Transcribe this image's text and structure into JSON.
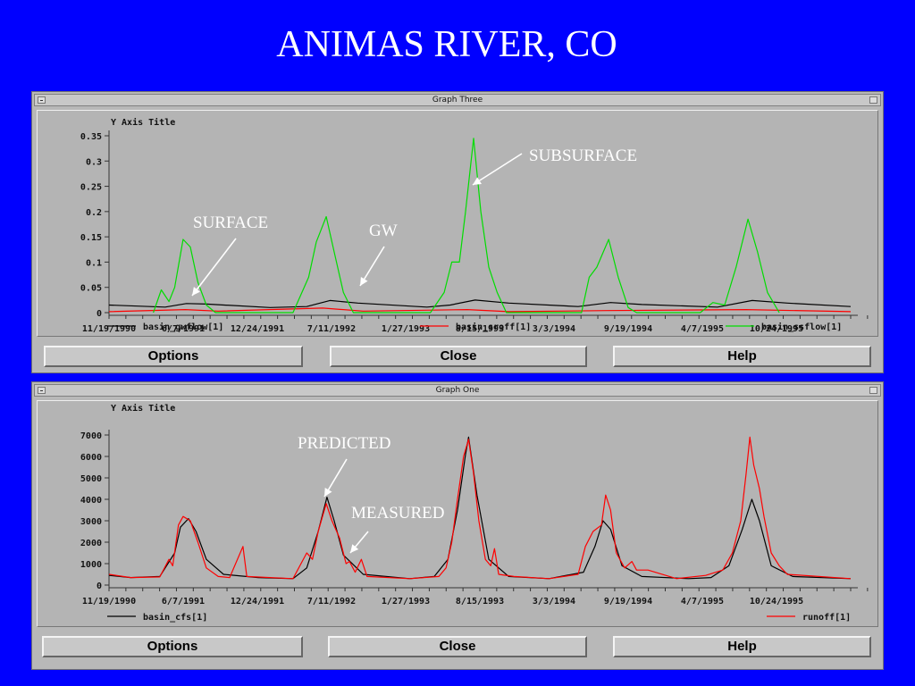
{
  "slide_title": "ANIMAS RIVER, CO",
  "windows": [
    {
      "title": "Graph Three",
      "buttons": {
        "options": "Options",
        "close": "Close",
        "help": "Help"
      }
    },
    {
      "title": "Graph One",
      "buttons": {
        "options": "Options",
        "close": "Close",
        "help": "Help"
      }
    }
  ],
  "chart_data": [
    {
      "type": "line",
      "ylabel": "Y Axis Title",
      "ylim": [
        0,
        0.35
      ],
      "yticks": [
        "0.35",
        "0.3",
        "0.25",
        "0.2",
        "0.15",
        "0.1",
        "0.05",
        "0"
      ],
      "xlim": [
        "1990-11-19",
        "1996-03-15"
      ],
      "xtick_labels": [
        "11/19/1990",
        "6/7/1991",
        "12/24/1991",
        "7/11/1992",
        "1/27/1993",
        "8/15/1993",
        "3/3/1994",
        "9/19/1994",
        "4/7/1995",
        "10/24/1995"
      ],
      "series": [
        {
          "name": "basin_gwflow[1]",
          "color": "#000000",
          "points": [
            [
              "1990-11-19",
              0.015
            ],
            [
              "1991-04-15",
              0.011
            ],
            [
              "1991-06-10",
              0.018
            ],
            [
              "1991-08-01",
              0.017
            ],
            [
              "1992-01-15",
              0.01
            ],
            [
              "1992-04-20",
              0.012
            ],
            [
              "1992-06-20",
              0.024
            ],
            [
              "1992-09-01",
              0.019
            ],
            [
              "1993-03-01",
              0.011
            ],
            [
              "1993-05-01",
              0.015
            ],
            [
              "1993-07-05",
              0.025
            ],
            [
              "1993-10-01",
              0.019
            ],
            [
              "1994-04-01",
              0.012
            ],
            [
              "1994-06-25",
              0.02
            ],
            [
              "1994-09-15",
              0.016
            ],
            [
              "1995-04-01",
              0.011
            ],
            [
              "1995-07-01",
              0.024
            ],
            [
              "1995-10-01",
              0.019
            ],
            [
              "1996-03-15",
              0.012
            ]
          ]
        },
        {
          "name": "basin_sroff[1]",
          "color": "#ff0000",
          "points": [
            [
              "1990-11-19",
              0.002
            ],
            [
              "1991-06-07",
              0.006
            ],
            [
              "1991-09-01",
              0.003
            ],
            [
              "1992-06-01",
              0.009
            ],
            [
              "1992-09-15",
              0.003
            ],
            [
              "1993-06-15",
              0.006
            ],
            [
              "1993-10-01",
              0.002
            ],
            [
              "1994-06-15",
              0.004
            ],
            [
              "1995-06-15",
              0.006
            ],
            [
              "1996-03-15",
              0.002
            ]
          ]
        },
        {
          "name": "basin_ssflow[1]",
          "color": "#00dd00",
          "points": [
            [
              "1991-03-15",
              0.0
            ],
            [
              "1991-04-05",
              0.045
            ],
            [
              "1991-04-25",
              0.022
            ],
            [
              "1991-05-10",
              0.05
            ],
            [
              "1991-06-01",
              0.145
            ],
            [
              "1991-06-20",
              0.13
            ],
            [
              "1991-07-10",
              0.06
            ],
            [
              "1991-08-01",
              0.015
            ],
            [
              "1991-08-25",
              0.0
            ],
            [
              "1992-03-15",
              0.0
            ],
            [
              "1992-04-25",
              0.07
            ],
            [
              "1992-05-15",
              0.14
            ],
            [
              "1992-06-10",
              0.19
            ],
            [
              "1992-07-01",
              0.12
            ],
            [
              "1992-07-25",
              0.04
            ],
            [
              "1992-08-20",
              0.0
            ],
            [
              "1993-03-10",
              0.0
            ],
            [
              "1993-04-15",
              0.04
            ],
            [
              "1993-05-05",
              0.1
            ],
            [
              "1993-05-25",
              0.1
            ],
            [
              "1993-06-10",
              0.2
            ],
            [
              "1993-07-01",
              0.345
            ],
            [
              "1993-07-20",
              0.2
            ],
            [
              "1993-08-10",
              0.09
            ],
            [
              "1993-09-01",
              0.04
            ],
            [
              "1993-09-25",
              0.0
            ],
            [
              "1994-04-10",
              0.0
            ],
            [
              "1994-04-30",
              0.07
            ],
            [
              "1994-05-20",
              0.09
            ],
            [
              "1994-06-20",
              0.145
            ],
            [
              "1994-07-15",
              0.07
            ],
            [
              "1994-08-10",
              0.01
            ],
            [
              "1994-09-01",
              0.0
            ],
            [
              "1995-02-15",
              0.0
            ],
            [
              "1995-03-20",
              0.02
            ],
            [
              "1995-04-20",
              0.015
            ],
            [
              "1995-05-20",
              0.09
            ],
            [
              "1995-06-20",
              0.185
            ],
            [
              "1995-07-15",
              0.12
            ],
            [
              "1995-08-10",
              0.04
            ],
            [
              "1995-09-10",
              0.0
            ]
          ]
        }
      ],
      "annotations": [
        "SUBSURFACE",
        "SURFACE",
        "GW"
      ]
    },
    {
      "type": "line",
      "ylabel": "Y Axis Title",
      "ylim": [
        0,
        7000
      ],
      "yticks": [
        "7000",
        "6000",
        "5000",
        "4000",
        "3000",
        "2000",
        "1000",
        "0"
      ],
      "xlim": [
        "1990-11-19",
        "1996-03-15"
      ],
      "xtick_labels": [
        "11/19/1990",
        "6/7/1991",
        "12/24/1991",
        "7/11/1992",
        "1/27/1993",
        "8/15/1993",
        "3/3/1994",
        "9/19/1994",
        "4/7/1995",
        "10/24/1995"
      ],
      "series": [
        {
          "name": "basin_cfs[1]",
          "color": "#000000",
          "points": [
            [
              "1990-11-19",
              450
            ],
            [
              "1991-01-15",
              350
            ],
            [
              "1991-04-01",
              400
            ],
            [
              "1991-05-10",
              1500
            ],
            [
              "1991-05-25",
              2700
            ],
            [
              "1991-06-15",
              3100
            ],
            [
              "1991-07-05",
              2500
            ],
            [
              "1991-08-01",
              1200
            ],
            [
              "1991-09-15",
              500
            ],
            [
              "1991-12-15",
              350
            ],
            [
              "1992-03-15",
              300
            ],
            [
              "1992-04-20",
              800
            ],
            [
              "1992-05-20",
              2500
            ],
            [
              "1992-06-12",
              4100
            ],
            [
              "1992-07-01",
              3000
            ],
            [
              "1992-07-25",
              1400
            ],
            [
              "1992-09-15",
              500
            ],
            [
              "1993-01-15",
              300
            ],
            [
              "1993-03-20",
              400
            ],
            [
              "1993-04-25",
              1200
            ],
            [
              "1993-05-20",
              3500
            ],
            [
              "1993-06-10",
              6100
            ],
            [
              "1993-06-18",
              6900
            ],
            [
              "1993-07-10",
              4200
            ],
            [
              "1993-08-10",
              1200
            ],
            [
              "1993-10-01",
              400
            ],
            [
              "1994-01-15",
              300
            ],
            [
              "1994-04-15",
              600
            ],
            [
              "1994-05-15",
              1800
            ],
            [
              "1994-06-05",
              3000
            ],
            [
              "1994-06-25",
              2600
            ],
            [
              "1994-07-25",
              900
            ],
            [
              "1994-09-15",
              400
            ],
            [
              "1995-01-15",
              300
            ],
            [
              "1995-03-15",
              350
            ],
            [
              "1995-05-01",
              900
            ],
            [
              "1995-06-05",
              2600
            ],
            [
              "1995-06-30",
              4000
            ],
            [
              "1995-07-20",
              3000
            ],
            [
              "1995-08-20",
              900
            ],
            [
              "1995-10-15",
              400
            ],
            [
              "1996-03-15",
              300
            ]
          ]
        },
        {
          "name": "runoff[1]",
          "color": "#ff0000",
          "points": [
            [
              "1990-11-19",
              500
            ],
            [
              "1991-01-15",
              350
            ],
            [
              "1991-04-01",
              380
            ],
            [
              "1991-04-25",
              1200
            ],
            [
              "1991-05-05",
              900
            ],
            [
              "1991-05-20",
              2800
            ],
            [
              "1991-06-01",
              3200
            ],
            [
              "1991-06-20",
              3000
            ],
            [
              "1991-07-10",
              2000
            ],
            [
              "1991-08-01",
              800
            ],
            [
              "1991-09-01",
              400
            ],
            [
              "1991-10-01",
              350
            ],
            [
              "1991-11-05",
              1800
            ],
            [
              "1991-11-15",
              400
            ],
            [
              "1992-03-15",
              300
            ],
            [
              "1992-04-20",
              1500
            ],
            [
              "1992-05-05",
              1200
            ],
            [
              "1992-05-20",
              2500
            ],
            [
              "1992-06-10",
              3800
            ],
            [
              "1992-06-25",
              3000
            ],
            [
              "1992-07-15",
              2200
            ],
            [
              "1992-08-01",
              1000
            ],
            [
              "1992-08-10",
              1100
            ],
            [
              "1992-08-25",
              600
            ],
            [
              "1992-09-10",
              1200
            ],
            [
              "1992-09-25",
              400
            ],
            [
              "1993-01-15",
              300
            ],
            [
              "1993-04-01",
              400
            ],
            [
              "1993-04-20",
              800
            ],
            [
              "1993-05-05",
              2000
            ],
            [
              "1993-05-20",
              4000
            ],
            [
              "1993-06-05",
              6000
            ],
            [
              "1993-06-18",
              6800
            ],
            [
              "1993-07-01",
              5200
            ],
            [
              "1993-07-15",
              3000
            ],
            [
              "1993-08-01",
              1200
            ],
            [
              "1993-08-15",
              900
            ],
            [
              "1993-08-25",
              1700
            ],
            [
              "1993-09-05",
              500
            ],
            [
              "1993-10-15",
              400
            ],
            [
              "1994-01-15",
              300
            ],
            [
              "1994-04-01",
              500
            ],
            [
              "1994-04-20",
              1800
            ],
            [
              "1994-05-10",
              2500
            ],
            [
              "1994-06-01",
              2800
            ],
            [
              "1994-06-12",
              4200
            ],
            [
              "1994-06-25",
              3500
            ],
            [
              "1994-07-10",
              1500
            ],
            [
              "1994-08-01",
              800
            ],
            [
              "1994-08-20",
              1100
            ],
            [
              "1994-09-01",
              700
            ],
            [
              "1994-10-01",
              700
            ],
            [
              "1994-12-15",
              300
            ],
            [
              "1995-03-01",
              450
            ],
            [
              "1995-04-15",
              700
            ],
            [
              "1995-05-10",
              1500
            ],
            [
              "1995-06-01",
              3000
            ],
            [
              "1995-06-15",
              5200
            ],
            [
              "1995-06-25",
              6900
            ],
            [
              "1995-07-05",
              5600
            ],
            [
              "1995-07-20",
              4500
            ],
            [
              "1995-08-01",
              3200
            ],
            [
              "1995-08-20",
              1500
            ],
            [
              "1995-09-10",
              900
            ],
            [
              "1995-10-01",
              500
            ],
            [
              "1996-03-15",
              300
            ]
          ]
        }
      ],
      "annotations": [
        "PREDICTED",
        "MEASURED"
      ]
    }
  ]
}
